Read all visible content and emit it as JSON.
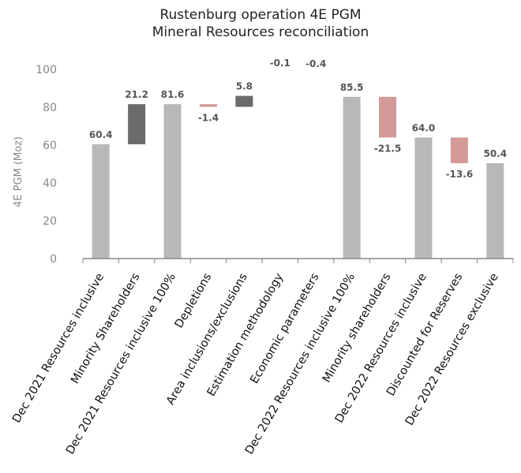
{
  "chart_data": {
    "type": "waterfall",
    "title": "Rustenburg operation 4E PGM",
    "subtitle": "Mineral Resources reconciliation",
    "ylabel": "4E PGM (Moz)",
    "xlabel": "",
    "ylim": [
      0,
      100
    ],
    "yticks": [
      0,
      20,
      40,
      60,
      80,
      100
    ],
    "grid": false,
    "categories": [
      "Dec 2021 Resources inclusive",
      "Minority Shareholders",
      "Dec 2021 Resources inclusive 100%",
      "Depletions",
      "Area inclusions/exclusions",
      "Estimation methodology",
      "Economic parameters",
      "Dec 2022 Resources inclusive 100%",
      "Minority shareholders",
      "Dec 2022 Resources inclusive",
      "Discounted for Reserves",
      "Dec 2022 Resources exclusive"
    ],
    "values": [
      60.4,
      21.2,
      81.6,
      -1.4,
      5.8,
      -0.1,
      -0.4,
      85.5,
      -21.5,
      64.0,
      -13.6,
      50.4
    ],
    "labels": [
      "60.4",
      "21.2",
      "81.6",
      "-1.4",
      "5.8",
      "-0.1",
      "-0.4",
      "85.5",
      "-21.5",
      "64.0",
      "-13.6",
      "50.4"
    ],
    "kinds": [
      "total",
      "change",
      "total",
      "change",
      "change",
      "change",
      "change",
      "total",
      "change",
      "total",
      "change",
      "total"
    ],
    "colors": {
      "total": "#b8b8b8",
      "increase": "#6b6b6b",
      "decrease": "#d39a98",
      "axis": "#888888"
    }
  }
}
